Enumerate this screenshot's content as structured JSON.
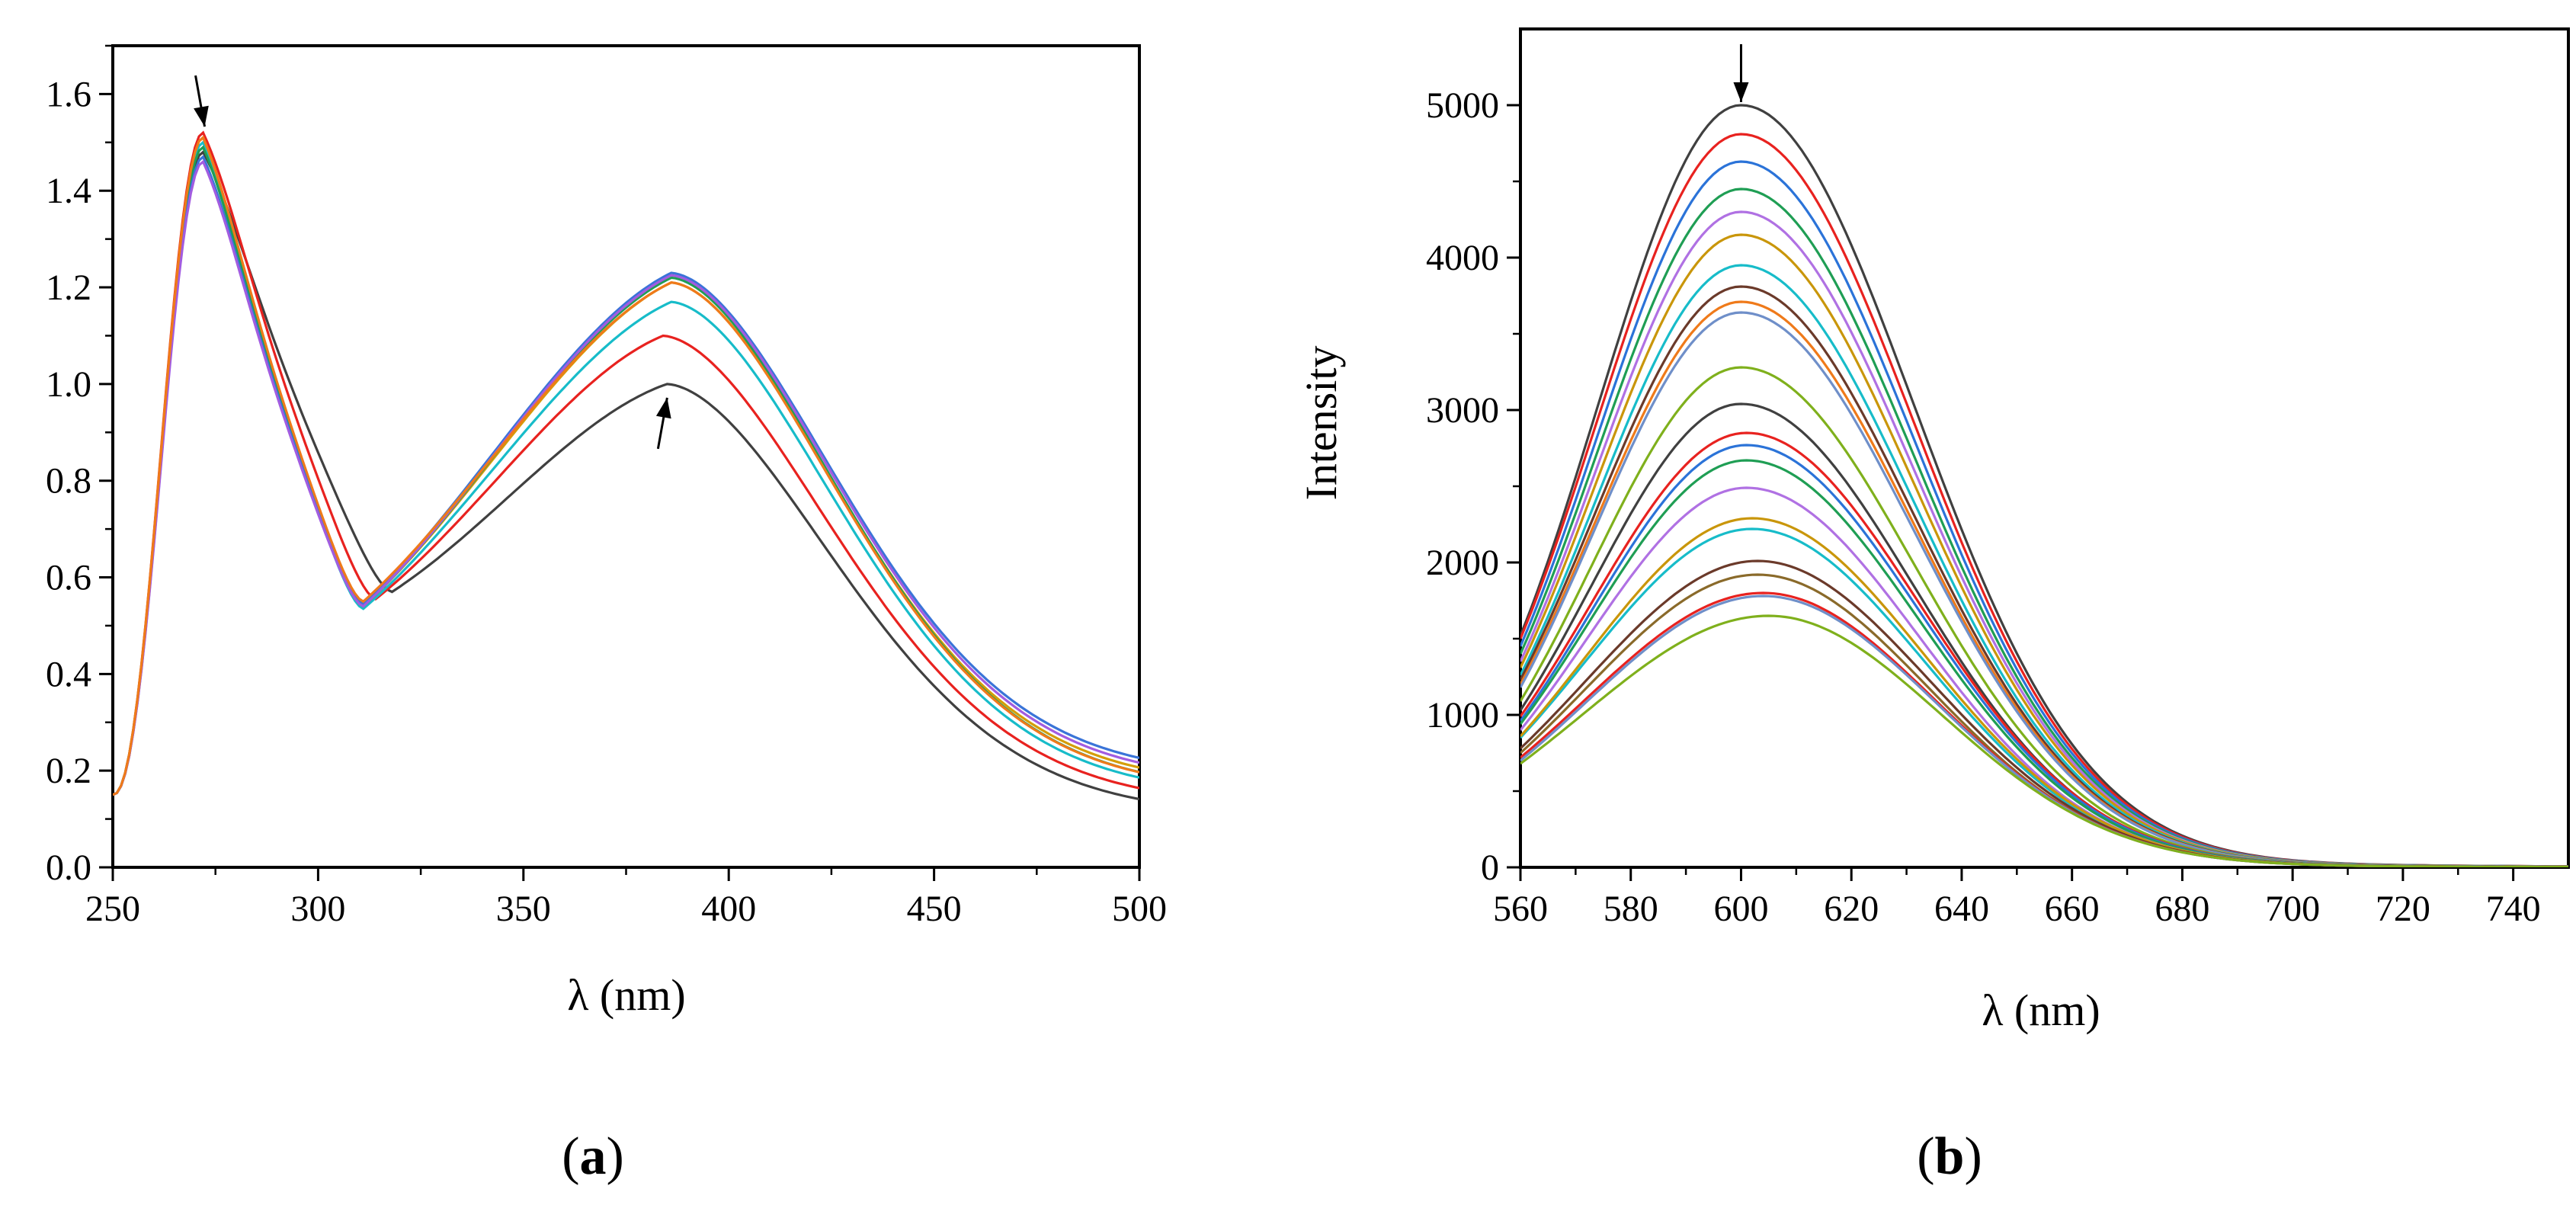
{
  "chart_data": [
    {
      "panel": "a",
      "type": "line",
      "xlabel": "λ (nm)",
      "ylabel": "",
      "xlim": [
        250,
        500
      ],
      "ylim": [
        0.0,
        1.7
      ],
      "xticks": [
        250,
        300,
        350,
        400,
        450,
        500
      ],
      "xtick_labels": [
        "250",
        "300",
        "350",
        "400",
        "450",
        "500"
      ],
      "yticks": [
        0.0,
        0.2,
        0.4,
        0.6,
        0.8,
        1.0,
        1.2,
        1.4,
        1.6
      ],
      "ytick_labels": [
        "0.0",
        "0.2",
        "0.4",
        "0.6",
        "0.8",
        "1.0",
        "1.2",
        "1.4",
        "1.6"
      ],
      "annotations": [
        {
          "type": "arrow",
          "direction": "down",
          "x": 272,
          "y": 1.52
        },
        {
          "type": "arrow",
          "direction": "up",
          "x": 385,
          "y": 1.0
        }
      ],
      "series": [
        {
          "color": "#404040",
          "peak1": {
            "x": 272,
            "y": 1.48
          },
          "dip": {
            "x": 318,
            "y": 0.57
          },
          "peak2": {
            "x": 385,
            "y": 1.0
          },
          "end": 0.11
        },
        {
          "color": "#e8221f",
          "peak1": {
            "x": 272,
            "y": 1.52
          },
          "dip": {
            "x": 314,
            "y": 0.555
          },
          "peak2": {
            "x": 384,
            "y": 1.1
          },
          "end": 0.13
        },
        {
          "color": "#17bcc9",
          "peak1": {
            "x": 272,
            "y": 1.5
          },
          "dip": {
            "x": 311,
            "y": 0.535
          },
          "peak2": {
            "x": 386,
            "y": 1.17
          },
          "end": 0.15
        },
        {
          "color": "#d49e08",
          "peak1": {
            "x": 272,
            "y": 1.51
          },
          "dip": {
            "x": 311,
            "y": 0.54
          },
          "peak2": {
            "x": 386,
            "y": 1.21
          },
          "end": 0.17
        },
        {
          "color": "#1f9e54",
          "peak1": {
            "x": 272,
            "y": 1.49
          },
          "dip": {
            "x": 311,
            "y": 0.54
          },
          "peak2": {
            "x": 386,
            "y": 1.22
          },
          "end": 0.16
        },
        {
          "color": "#3a74d8",
          "peak1": {
            "x": 272,
            "y": 1.47
          },
          "dip": {
            "x": 311,
            "y": 0.545
          },
          "peak2": {
            "x": 386,
            "y": 1.23
          },
          "end": 0.19
        },
        {
          "color": "#a25ce0",
          "peak1": {
            "x": 272,
            "y": 1.46
          },
          "dip": {
            "x": 311,
            "y": 0.54
          },
          "peak2": {
            "x": 386,
            "y": 1.225
          },
          "end": 0.18
        },
        {
          "color": "#ef7a1a",
          "peak1": {
            "x": 272,
            "y": 1.51
          },
          "dip": {
            "x": 311,
            "y": 0.55
          },
          "peak2": {
            "x": 386,
            "y": 1.21
          },
          "end": 0.16
        }
      ]
    },
    {
      "panel": "b",
      "type": "line",
      "xlabel": "λ (nm)",
      "ylabel": "Intensity",
      "xlim": [
        560,
        750
      ],
      "ylim": [
        0,
        5500
      ],
      "xticks": [
        560,
        580,
        600,
        620,
        640,
        660,
        680,
        700,
        720,
        740
      ],
      "xtick_labels": [
        "560",
        "580",
        "600",
        "620",
        "640",
        "660",
        "680",
        "700",
        "720",
        "740"
      ],
      "yticks": [
        0,
        1000,
        2000,
        3000,
        4000,
        5000
      ],
      "ytick_labels": [
        "0",
        "1000",
        "2000",
        "3000",
        "4000",
        "5000"
      ],
      "annotations": [
        {
          "type": "arrow",
          "direction": "down",
          "x": 600,
          "y": 5000
        }
      ],
      "series": [
        {
          "color": "#404040",
          "peak_x": 600,
          "peak": 5000,
          "start": 1520
        },
        {
          "color": "#e8221f",
          "peak_x": 600,
          "peak": 4810,
          "start": 1500
        },
        {
          "color": "#2b73d8",
          "peak_x": 600,
          "peak": 4630,
          "start": 1450
        },
        {
          "color": "#1f9e54",
          "peak_x": 600,
          "peak": 4450,
          "start": 1400
        },
        {
          "color": "#b071e3",
          "peak_x": 600,
          "peak": 4300,
          "start": 1350
        },
        {
          "color": "#c9960a",
          "peak_x": 600,
          "peak": 4150,
          "start": 1310
        },
        {
          "color": "#17bcc9",
          "peak_x": 600,
          "peak": 3950,
          "start": 1260
        },
        {
          "color": "#6b3a2a",
          "peak_x": 600,
          "peak": 3810,
          "start": 1230
        },
        {
          "color": "#ef7a1a",
          "peak_x": 600,
          "peak": 3710,
          "start": 1200
        },
        {
          "color": "#6f8fc9",
          "peak_x": 600,
          "peak": 3640,
          "start": 1180
        },
        {
          "color": "#7fb01c",
          "peak_x": 600,
          "peak": 3280,
          "start": 1090
        },
        {
          "color": "#404040",
          "peak_x": 600,
          "peak": 3040,
          "start": 1030
        },
        {
          "color": "#e8221f",
          "peak_x": 601,
          "peak": 2850,
          "start": 990
        },
        {
          "color": "#2b73d8",
          "peak_x": 601,
          "peak": 2770,
          "start": 960
        },
        {
          "color": "#1f9e54",
          "peak_x": 601,
          "peak": 2670,
          "start": 940
        },
        {
          "color": "#b071e3",
          "peak_x": 601,
          "peak": 2490,
          "start": 900
        },
        {
          "color": "#17bcc9",
          "peak_x": 602,
          "peak": 2220,
          "start": 850
        },
        {
          "color": "#c9960a",
          "peak_x": 602,
          "peak": 2290,
          "start": 860
        },
        {
          "color": "#6b3a2a",
          "peak_x": 603,
          "peak": 2010,
          "start": 780
        },
        {
          "color": "#8a6a2a",
          "peak_x": 603,
          "peak": 1920,
          "start": 750
        },
        {
          "color": "#e8221f",
          "peak_x": 604,
          "peak": 1800,
          "start": 720
        },
        {
          "color": "#6f8fc9",
          "peak_x": 604,
          "peak": 1780,
          "start": 700
        },
        {
          "color": "#7fb01c",
          "peak_x": 605,
          "peak": 1650,
          "start": 680
        }
      ]
    }
  ],
  "panels": {
    "a": {
      "open": "(",
      "letter": "a",
      "close": ")"
    },
    "b": {
      "open": "(",
      "letter": "b",
      "close": ")"
    }
  }
}
